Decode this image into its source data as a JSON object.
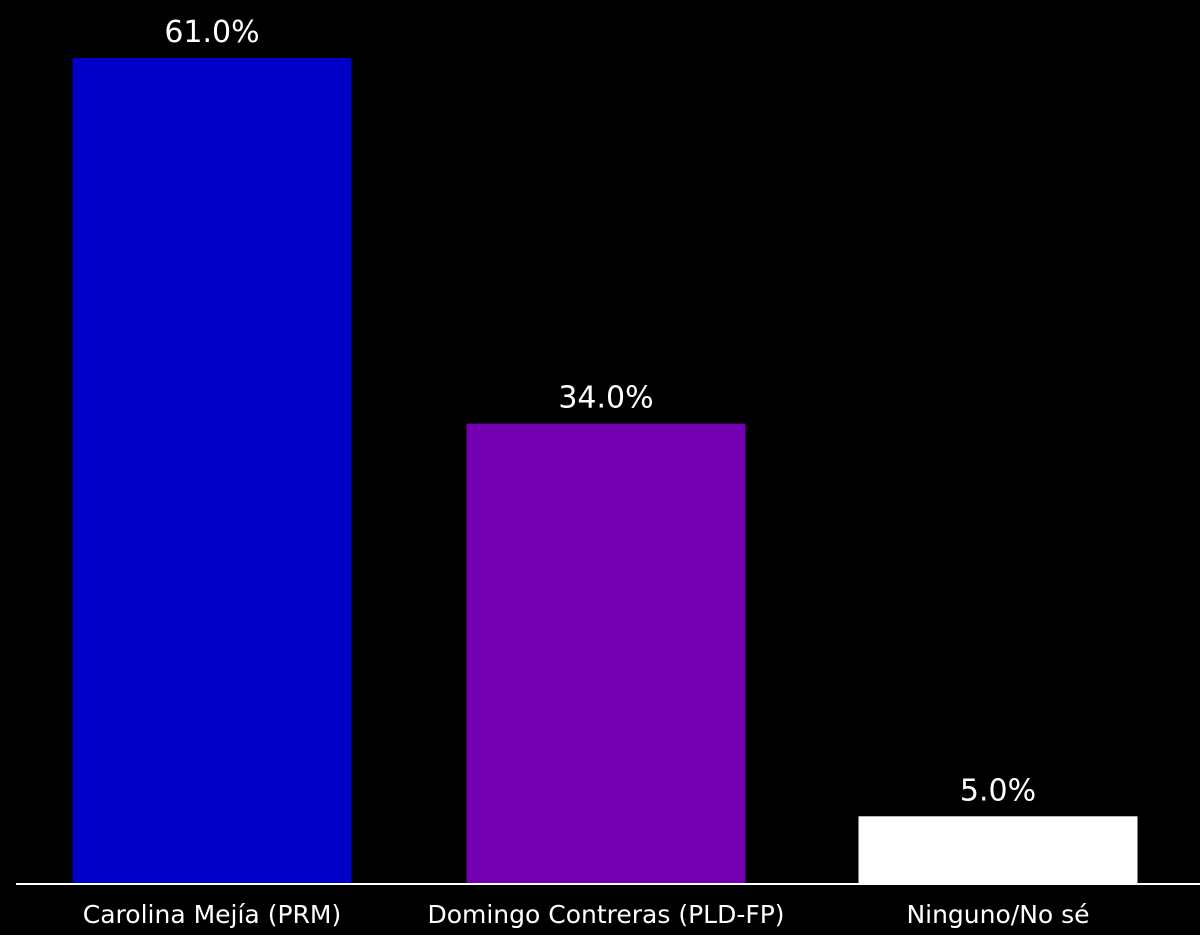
{
  "chart_data": {
    "type": "bar",
    "categories": [
      "Carolina Mejía (PRM)",
      "Domingo Contreras (PLD-FP)",
      "Ninguno/No sé"
    ],
    "values": [
      61.0,
      34.0,
      5.0
    ],
    "value_labels": [
      "61.0%",
      "34.0%",
      "5.0%"
    ],
    "colors": [
      "#0000c8",
      "#7300b0",
      "#ffffff"
    ],
    "ylim": [
      0,
      61
    ],
    "grid": false,
    "legend": "none",
    "xlabel": "",
    "ylabel": ""
  },
  "colors": {
    "background": "#000000",
    "text": "#ffffff",
    "axis": "#ffffff"
  }
}
